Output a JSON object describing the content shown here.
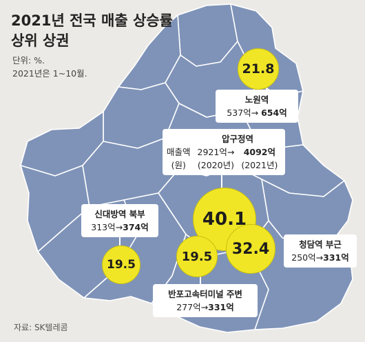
{
  "title_line1": "2021년 전국 매출 상승률",
  "title_line2": "상위 상권",
  "unit_line1": "단위: %.",
  "unit_line2": "2021년은 1~10월.",
  "source": "자료: SK텔레콤",
  "colors": {
    "bubble": "#f0e625",
    "map": "#7f93b8",
    "background": "#eceae6"
  },
  "legend": {
    "name": "압구정역",
    "label_line1": "매출액",
    "label_line2": "(원)",
    "from_value": "2921억",
    "to_value": "4092억",
    "from_year": "(2020년)",
    "to_year": "(2021년)"
  },
  "districts": [
    {
      "name": "노원역",
      "rate": "21.8",
      "from": "537억",
      "to": "654억"
    },
    {
      "name": "압구정역",
      "rate": "40.1"
    },
    {
      "name": "청담역 부근",
      "rate": "32.4",
      "from": "250억",
      "to": "331억"
    },
    {
      "name": "반포고속터미널 주변",
      "rate": "19.5",
      "from": "277억",
      "to": "331억"
    },
    {
      "name": "신대방역 북부",
      "rate": "19.5",
      "from": "313억",
      "to": "374억"
    }
  ]
}
